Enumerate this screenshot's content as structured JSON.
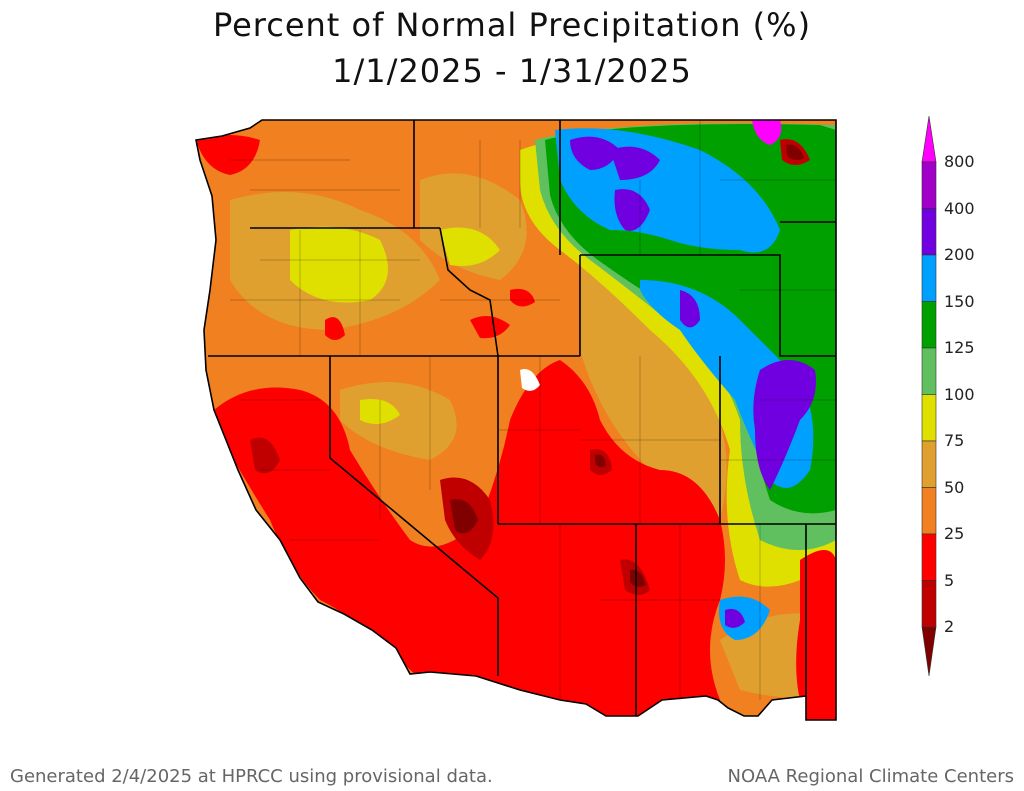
{
  "title_line1": "Percent of Normal Precipitation (%)",
  "title_line2": "1/1/2025 - 1/31/2025",
  "legend": {
    "labels": [
      "800",
      "400",
      "200",
      "150",
      "125",
      "100",
      "75",
      "50",
      "25",
      "5",
      "2"
    ],
    "colors": [
      "#ff00ff",
      "#a000c8",
      "#7000e0",
      "#00a0ff",
      "#00a000",
      "#60c060",
      "#e0e000",
      "#e0a030",
      "#f08020",
      "#ff0000",
      "#c00000",
      "#800000"
    ]
  },
  "footer_left": "Generated 2/4/2025 at HPRCC using provisional data.",
  "footer_right": "NOAA Regional Climate Centers"
}
